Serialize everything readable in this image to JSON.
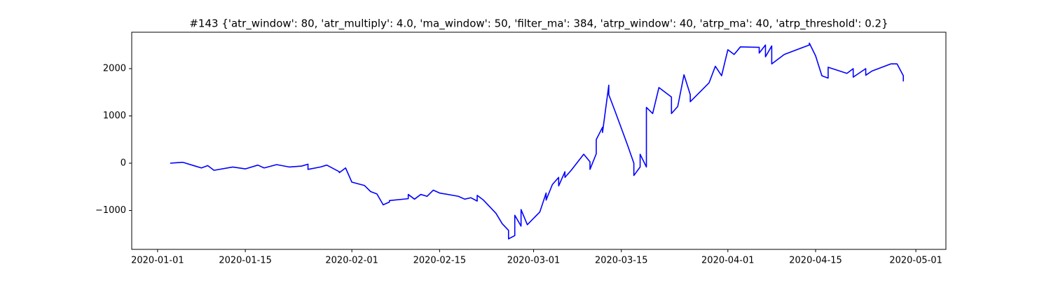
{
  "chart_data": {
    "type": "line",
    "title": "#143 {'atr_window': 80, 'atr_multiply': 4.0, 'ma_window': 50, 'filter_ma': 384, 'atrp_window': 40, 'atrp_ma': 40, 'atrp_threshold': 0.2}",
    "x": [
      "2020-01-03",
      "2020-01-04",
      "2020-01-05",
      "2020-01-07",
      "2020-01-08",
      "2020-01-09",
      "2020-01-10",
      "2020-01-13",
      "2020-01-15",
      "2020-01-17",
      "2020-01-18",
      "2020-01-20",
      "2020-01-22",
      "2020-01-24",
      "2020-01-25",
      "2020-01-25",
      "2020-01-27",
      "2020-01-28",
      "2020-01-30",
      "2020-01-30",
      "2020-01-31",
      "2020-02-01",
      "2020-02-03",
      "2020-02-04",
      "2020-02-05",
      "2020-02-06",
      "2020-02-07",
      "2020-02-07",
      "2020-02-10",
      "2020-02-10",
      "2020-02-11",
      "2020-02-12",
      "2020-02-13",
      "2020-02-14",
      "2020-02-15",
      "2020-02-18",
      "2020-02-19",
      "2020-02-20",
      "2020-02-21",
      "2020-02-21",
      "2020-02-22",
      "2020-02-24",
      "2020-02-25",
      "2020-02-26",
      "2020-02-26",
      "2020-02-27",
      "2020-02-27",
      "2020-02-28",
      "2020-02-28",
      "2020-02-29",
      "2020-03-02",
      "2020-03-03",
      "2020-03-03",
      "2020-03-04",
      "2020-03-05",
      "2020-03-05",
      "2020-03-06",
      "2020-03-06",
      "2020-03-07",
      "2020-03-09",
      "2020-03-10",
      "2020-03-10",
      "2020-03-11",
      "2020-03-11",
      "2020-03-12",
      "2020-03-12",
      "2020-03-13",
      "2020-03-13",
      "2020-03-14",
      "2020-03-16",
      "2020-03-17",
      "2020-03-17",
      "2020-03-18",
      "2020-03-18",
      "2020-03-19",
      "2020-03-19",
      "2020-03-19",
      "2020-03-20",
      "2020-03-21",
      "2020-03-23",
      "2020-03-23",
      "2020-03-24",
      "2020-03-25",
      "2020-03-26",
      "2020-03-26",
      "2020-03-29",
      "2020-03-30",
      "2020-03-31",
      "2020-04-01",
      "2020-04-02",
      "2020-04-03",
      "2020-04-06",
      "2020-04-06",
      "2020-04-07",
      "2020-04-07",
      "2020-04-08",
      "2020-04-08",
      "2020-04-10",
      "2020-04-14",
      "2020-04-14",
      "2020-04-15",
      "2020-04-16",
      "2020-04-17",
      "2020-04-17",
      "2020-04-20",
      "2020-04-21",
      "2020-04-21",
      "2020-04-23",
      "2020-04-23",
      "2020-04-24",
      "2020-04-27",
      "2020-04-28",
      "2020-04-29",
      "2020-04-29"
    ],
    "series": [
      {
        "color": "#0000ff",
        "values": [
          0,
          10,
          20,
          -60,
          -100,
          -50,
          -150,
          -80,
          -120,
          -40,
          -100,
          -30,
          -80,
          -60,
          -20,
          -130,
          -80,
          -40,
          -180,
          -200,
          -100,
          -400,
          -470,
          -600,
          -650,
          -880,
          -820,
          -790,
          -750,
          -660,
          -760,
          -660,
          -700,
          -570,
          -630,
          -700,
          -760,
          -730,
          -800,
          -680,
          -780,
          -1060,
          -1280,
          -1420,
          -1600,
          -1530,
          -1100,
          -1330,
          -980,
          -1300,
          -1030,
          -630,
          -780,
          -450,
          -300,
          -480,
          -180,
          -300,
          -150,
          190,
          30,
          -130,
          200,
          500,
          760,
          650,
          1650,
          1450,
          1100,
          380,
          0,
          -260,
          -80,
          190,
          -80,
          800,
          1180,
          1050,
          1600,
          1400,
          1050,
          1200,
          1870,
          1450,
          1300,
          1700,
          2050,
          1850,
          2400,
          2300,
          2460,
          2450,
          2330,
          2500,
          2250,
          2480,
          2100,
          2300,
          2500,
          2540,
          2270,
          1850,
          1800,
          2030,
          1900,
          2000,
          1820,
          2000,
          1860,
          1950,
          2100,
          2100,
          1850,
          1730
        ]
      }
    ],
    "xlim": [
      "2019-12-27T21:00",
      "2020-05-05T19:00"
    ],
    "xticks": [
      "2020-01-01",
      "2020-01-15",
      "2020-02-01",
      "2020-02-15",
      "2020-03-01",
      "2020-03-15",
      "2020-04-01",
      "2020-04-15",
      "2020-05-01"
    ],
    "ylim": [
      -1822,
      2770
    ],
    "yticks": [
      {
        "value": -1000,
        "label": "−1000"
      },
      0,
      1000,
      2000
    ]
  }
}
